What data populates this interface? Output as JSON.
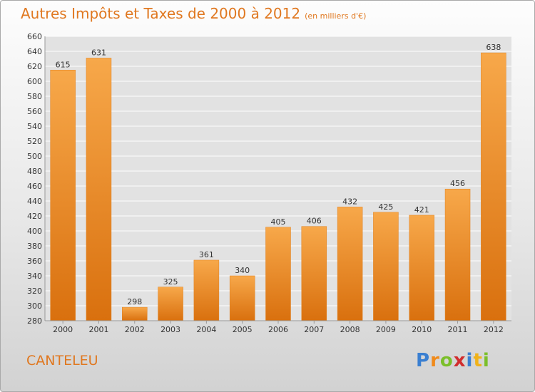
{
  "title": "Autres Impôts et Taxes de 2000 à 2012",
  "unit": "(en milliers d'€)",
  "town": "CANTELEU",
  "logo": {
    "letters": [
      "P",
      "r",
      "o",
      "x",
      "i",
      "t",
      "i"
    ],
    "colors": [
      "#3a7fd1",
      "#f08a1a",
      "#7bbf2a",
      "#d12e2e",
      "#3a7fd1",
      "#f0b21a",
      "#7bbf2a"
    ]
  },
  "colors": {
    "bar": "#f28c28",
    "bar_light": "#f7a84a",
    "bar_dark": "#d9700e",
    "grid": "#ffffff"
  },
  "chart_data": {
    "type": "bar",
    "categories": [
      "2000",
      "2001",
      "2002",
      "2003",
      "2004",
      "2005",
      "2006",
      "2007",
      "2008",
      "2009",
      "2010",
      "2011",
      "2012"
    ],
    "values": [
      615,
      631,
      298,
      325,
      361,
      340,
      405,
      406,
      432,
      425,
      421,
      456,
      638
    ],
    "data_labels": [
      "615",
      "631",
      "298",
      "325",
      "361",
      "340",
      "405",
      "406",
      "432",
      "425",
      "421",
      "456",
      "638"
    ],
    "ylim": [
      280,
      660
    ],
    "yticks": [
      280,
      300,
      320,
      340,
      360,
      380,
      400,
      420,
      440,
      460,
      480,
      500,
      520,
      540,
      560,
      580,
      600,
      620,
      640,
      660
    ],
    "ytick_labels": [
      "280",
      "300",
      "320",
      "340",
      "360",
      "380",
      "400",
      "420",
      "440",
      "460",
      "480",
      "500",
      "520",
      "540",
      "560",
      "580",
      "600",
      "620",
      "640",
      "660"
    ],
    "grid": true
  }
}
